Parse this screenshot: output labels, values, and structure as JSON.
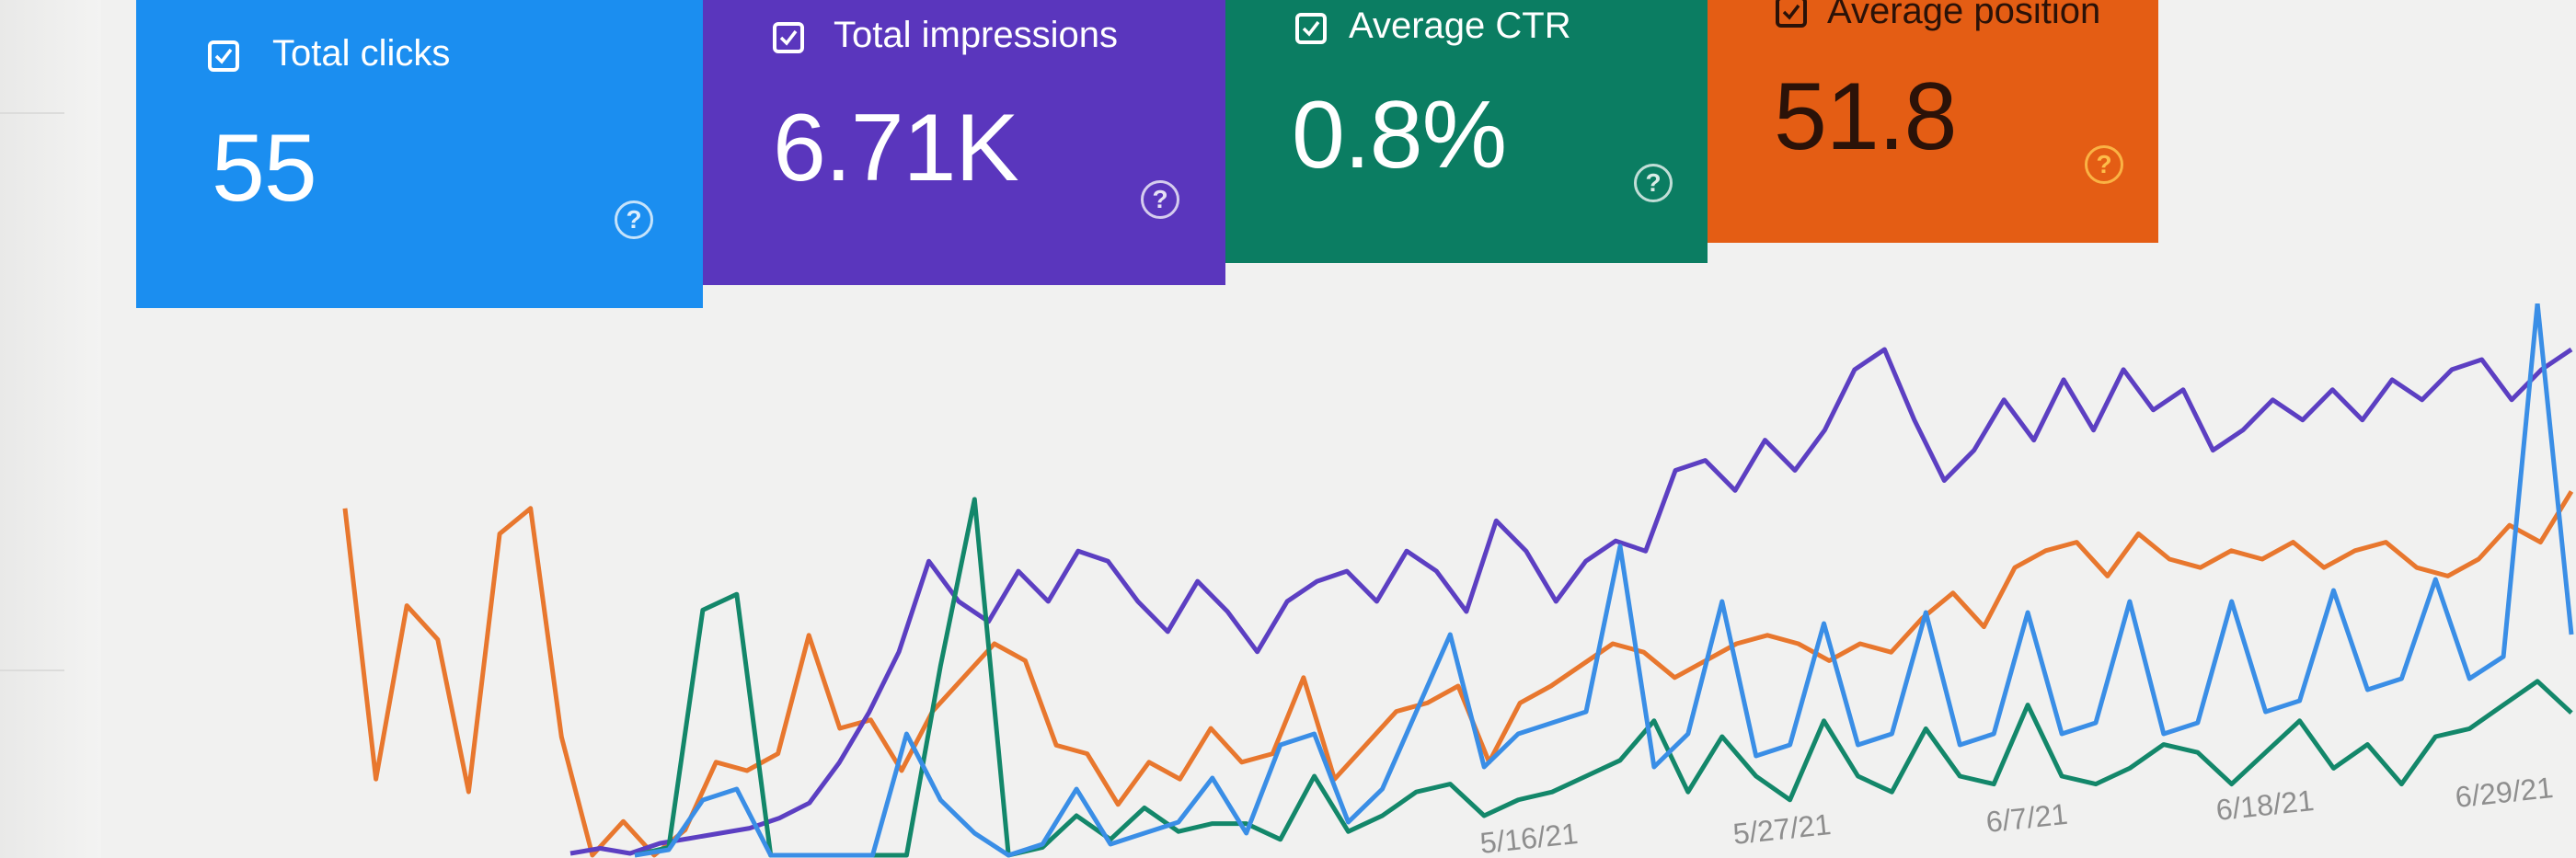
{
  "metrics": [
    {
      "key": "clicks",
      "label": "Total clicks",
      "value": "55",
      "color": "#1b8ef0",
      "checked": true,
      "icon": "help-circle-icon"
    },
    {
      "key": "impressions",
      "label": "Total impressions",
      "value": "6.71K",
      "color": "#5a36bd",
      "checked": true,
      "icon": "help-circle-icon"
    },
    {
      "key": "ctr",
      "label": "Average CTR",
      "value": "0.8%",
      "color": "#0b7d62",
      "checked": true,
      "icon": "help-circle-icon"
    },
    {
      "key": "position",
      "label": "Average position",
      "value": "51.8",
      "color": "#e45d14",
      "checked": true,
      "icon": "help-circle-icon"
    }
  ],
  "chart_data": {
    "type": "line",
    "x_tick_labels": [
      "5/16/21",
      "5/27/21",
      "6/7/21",
      "6/18/21",
      "6/29/21"
    ],
    "series": [
      {
        "color": "#e8772e",
        "values": [
          0.82,
          0.18,
          0.59,
          0.51,
          0.15,
          0.76,
          0.82,
          0.28,
          0.0,
          0.08,
          0.0,
          0.06,
          0.22,
          0.2,
          0.24,
          0.52,
          0.3,
          0.32,
          0.2,
          0.34,
          0.42,
          0.5,
          0.46,
          0.26,
          0.24,
          0.12,
          0.22,
          0.18,
          0.3,
          0.22,
          0.24,
          0.42,
          0.18,
          0.26,
          0.34,
          0.36,
          0.4,
          0.22,
          0.36,
          0.4,
          0.45,
          0.5,
          0.48,
          0.42,
          0.46,
          0.5,
          0.52,
          0.5,
          0.46,
          0.5,
          0.48,
          0.56,
          0.62,
          0.54,
          0.68,
          0.72,
          0.74,
          0.66,
          0.76,
          0.7,
          0.68,
          0.72,
          0.7,
          0.74,
          0.68,
          0.72,
          0.74,
          0.68,
          0.66,
          0.7,
          0.78,
          0.74,
          0.86
        ]
      },
      {
        "color": "#5c3fc2",
        "values": [
          0.0,
          0.01,
          0.0,
          0.02,
          0.03,
          0.04,
          0.05,
          0.07,
          0.1,
          0.18,
          0.28,
          0.4,
          0.58,
          0.5,
          0.46,
          0.56,
          0.5,
          0.6,
          0.58,
          0.5,
          0.44,
          0.54,
          0.48,
          0.4,
          0.5,
          0.54,
          0.56,
          0.5,
          0.6,
          0.56,
          0.48,
          0.66,
          0.6,
          0.5,
          0.58,
          0.62,
          0.6,
          0.76,
          0.78,
          0.72,
          0.82,
          0.76,
          0.84,
          0.96,
          1.0,
          0.86,
          0.74,
          0.8,
          0.9,
          0.82,
          0.94,
          0.84,
          0.96,
          0.88,
          0.92,
          0.8,
          0.84,
          0.9,
          0.86,
          0.92,
          0.86,
          0.94,
          0.9,
          0.96,
          0.98,
          0.9,
          0.96,
          1.0
        ]
      },
      {
        "color": "#13876a",
        "values": [
          0.0,
          0.02,
          0.62,
          0.66,
          0.0,
          0.0,
          0.0,
          0.0,
          0.0,
          0.48,
          0.9,
          0.0,
          0.02,
          0.1,
          0.04,
          0.12,
          0.06,
          0.08,
          0.08,
          0.04,
          0.2,
          0.06,
          0.1,
          0.16,
          0.18,
          0.1,
          0.14,
          0.16,
          0.2,
          0.24,
          0.34,
          0.16,
          0.3,
          0.2,
          0.14,
          0.34,
          0.2,
          0.16,
          0.32,
          0.2,
          0.18,
          0.38,
          0.2,
          0.18,
          0.22,
          0.28,
          0.26,
          0.18,
          0.26,
          0.34,
          0.22,
          0.28,
          0.18,
          0.3,
          0.32,
          0.38,
          0.44,
          0.36
        ]
      },
      {
        "color": "#3a8ee6",
        "values": [
          0.0,
          0.01,
          0.1,
          0.12,
          0.0,
          0.0,
          0.0,
          0.0,
          0.22,
          0.1,
          0.04,
          0.0,
          0.02,
          0.12,
          0.02,
          0.04,
          0.06,
          0.14,
          0.04,
          0.2,
          0.22,
          0.06,
          0.12,
          0.26,
          0.4,
          0.16,
          0.22,
          0.24,
          0.26,
          0.56,
          0.16,
          0.22,
          0.46,
          0.18,
          0.2,
          0.42,
          0.2,
          0.22,
          0.44,
          0.2,
          0.22,
          0.44,
          0.22,
          0.24,
          0.46,
          0.22,
          0.24,
          0.46,
          0.26,
          0.28,
          0.48,
          0.3,
          0.32,
          0.5,
          0.32,
          0.36,
          1.0,
          0.4
        ]
      }
    ]
  }
}
